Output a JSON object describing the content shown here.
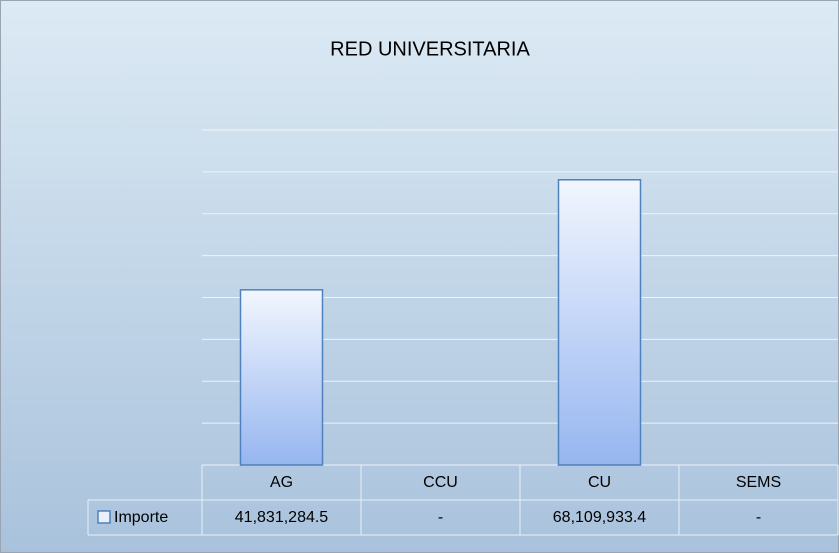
{
  "chart_data": {
    "type": "bar",
    "title": "RED UNIVERSITARIA",
    "categories": [
      "AG",
      "CCU",
      "CU",
      "SEMS"
    ],
    "series": [
      {
        "name": "Importe",
        "color": "#4f81bd",
        "values": [
          41831284.5,
          0,
          68109933.4,
          0
        ],
        "value_labels": [
          "41,831,284.5",
          "-",
          "68,109,933.4",
          "-"
        ]
      }
    ],
    "ylim": [
      0,
      80000000
    ],
    "yticks": [
      0,
      10000000,
      20000000,
      30000000,
      40000000,
      50000000,
      60000000,
      70000000,
      80000000
    ],
    "grid": true,
    "data_table": true
  }
}
